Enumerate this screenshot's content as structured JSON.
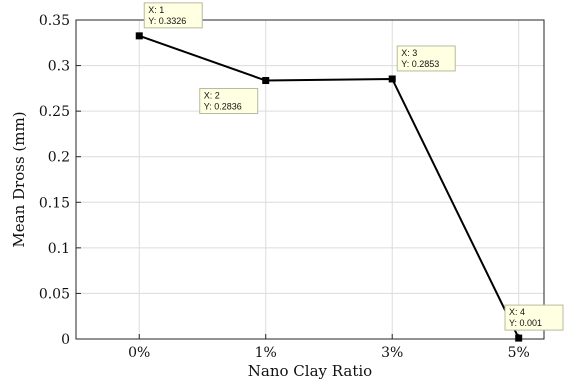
{
  "chart_data": {
    "type": "line",
    "title": "",
    "xlabel": "Nano Clay Ratio",
    "ylabel": "Mean Dross (mm)",
    "categories": [
      "0%",
      "1%",
      "3%",
      "5%"
    ],
    "x": [
      1,
      2,
      3,
      4
    ],
    "series": [
      {
        "values": [
          0.3326,
          0.2836,
          0.2853,
          0.001
        ]
      }
    ],
    "ylim": [
      0,
      0.35
    ],
    "xlim": [
      0.5,
      4.2
    ],
    "yticks": [
      "0",
      "0.05",
      "0.1",
      "0.15",
      "0.2",
      "0.25",
      "0.3",
      "0.35"
    ],
    "grid": true,
    "legend": "none",
    "datatips": [
      {
        "x_text": "X: 1",
        "y_text": "Y: 0.3326",
        "placement": "upper-right"
      },
      {
        "x_text": "X: 2",
        "y_text": "Y: 0.2836",
        "placement": "lower-left"
      },
      {
        "x_text": "X: 3",
        "y_text": "Y: 0.2853",
        "placement": "upper-right"
      },
      {
        "x_text": "X: 4",
        "y_text": "Y: 0.001",
        "placement": "upper-right"
      }
    ],
    "colors": {
      "line": "#000000",
      "grid": "#dcdcdc",
      "tip_fill": "#ffffe1",
      "tip_border": "#b9b9a0"
    }
  }
}
